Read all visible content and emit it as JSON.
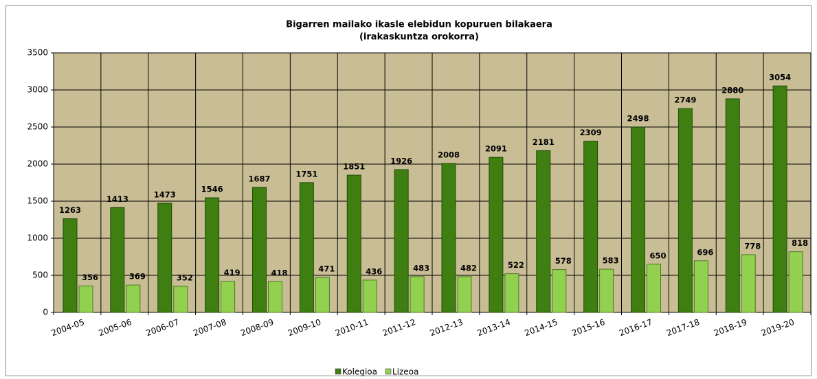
{
  "chart_data": {
    "type": "bar",
    "title": "Bigarren mailako ikasle elebidun kopuruen bilakaera",
    "subtitle": "(irakaskuntza orokorra)",
    "categories": [
      "2004-05",
      "2005-06",
      "2006-07",
      "2007-08",
      "2008-09",
      "2009-10",
      "2010-11",
      "2011-12",
      "2012-13",
      "2013-14",
      "2014-15",
      "2015-16",
      "2016-17",
      "2017-18",
      "2018-19",
      "2019-20"
    ],
    "series": [
      {
        "name": "Kolegioa",
        "color": "#3f7f12",
        "values": [
          1263,
          1413,
          1473,
          1546,
          1687,
          1751,
          1851,
          1926,
          2008,
          2091,
          2181,
          2309,
          2498,
          2749,
          2880,
          3054
        ]
      },
      {
        "name": "Lizeoa",
        "color": "#92d050",
        "values": [
          356,
          369,
          352,
          419,
          418,
          471,
          436,
          483,
          482,
          522,
          578,
          583,
          650,
          696,
          778,
          818
        ]
      }
    ],
    "ylim": [
      0,
      3500
    ],
    "yticks": [
      0,
      500,
      1000,
      1500,
      2000,
      2500,
      3000,
      3500
    ],
    "grid": true,
    "plot_background": "#c9bd95",
    "legend": "bottom"
  }
}
